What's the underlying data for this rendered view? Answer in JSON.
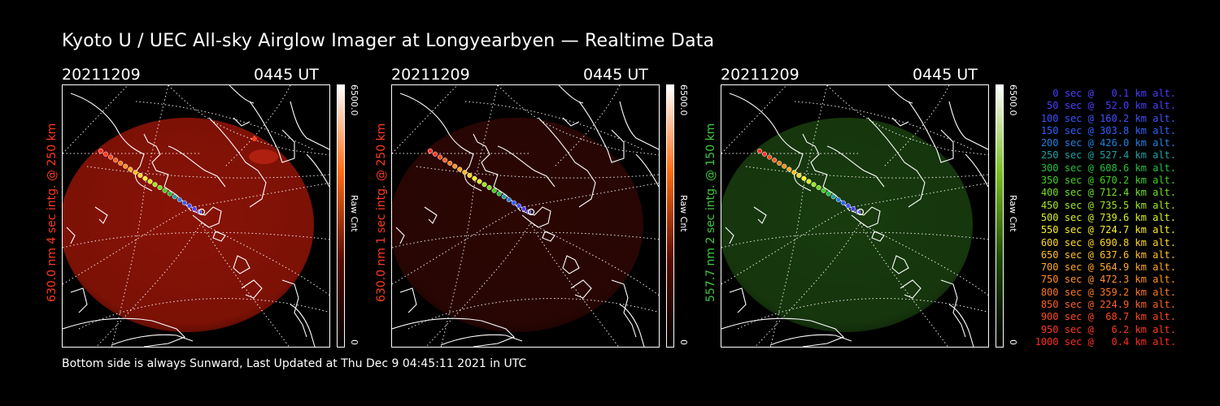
{
  "title": "Kyoto U / UEC All-sky Airglow Imager at Longyearbyen — Realtime Data",
  "panels": [
    {
      "date": "20211209",
      "time": "0445 UT",
      "ylabel": "630.0 nm 4 sec intg. @ 250 km",
      "ylabel_color": "#ff3a1e",
      "glow_color": "#b01808",
      "glow_opacity": 0.78,
      "cbar_max": "6500.0",
      "cbar_min": "0",
      "cbar_label": "Raw Cnt",
      "cbar_colors": [
        "#ffffff",
        "#ff6a10",
        "#5a0a00",
        "#000000"
      ]
    },
    {
      "date": "20211209",
      "time": "0445 UT",
      "ylabel": "630.0 nm 1 sec intg. @ 250 km",
      "ylabel_color": "#ff3a1e",
      "glow_color": "#3a0804",
      "glow_opacity": 0.75,
      "cbar_max": "6500.0",
      "cbar_min": "0",
      "cbar_label": "Raw Cnt",
      "cbar_colors": [
        "#ffffff",
        "#ff6a10",
        "#5a0a00",
        "#000000"
      ]
    },
    {
      "date": "20211209",
      "time": "0445 UT",
      "ylabel": "557.7 nm 2 sec intg. @ 150 km",
      "ylabel_color": "#3ec83e",
      "glow_color": "#1e4a12",
      "glow_opacity": 0.8,
      "cbar_max": "6500.0",
      "cbar_min": "0",
      "cbar_label": "Raw Cnt",
      "cbar_colors": [
        "#ffffff",
        "#7ac020",
        "#1e4a05",
        "#000000"
      ]
    }
  ],
  "footer": "Bottom side is always Sunward, Last Updated at Thu Dec  9 04:45:11 2021 in UTC",
  "legend": [
    {
      "text": "0 sec @   0.1 km alt.",
      "color": "#4a3cff"
    },
    {
      "text": "50 sec @  52.0 km alt.",
      "color": "#4a3cff"
    },
    {
      "text": "100 sec @ 160.2 km alt.",
      "color": "#4050ff"
    },
    {
      "text": "150 sec @ 303.8 km alt.",
      "color": "#3060ff"
    },
    {
      "text": "200 sec @ 426.0 km alt.",
      "color": "#2080e0"
    },
    {
      "text": "250 sec @ 527.4 km alt.",
      "color": "#20a0a0"
    },
    {
      "text": "300 sec @ 608.6 km alt.",
      "color": "#20c040"
    },
    {
      "text": "350 sec @ 670.2 km alt.",
      "color": "#40d020"
    },
    {
      "text": "400 sec @ 712.4 km alt.",
      "color": "#70e020"
    },
    {
      "text": "450 sec @ 735.5 km alt.",
      "color": "#a0e820"
    },
    {
      "text": "500 sec @ 739.6 km alt.",
      "color": "#d8f020"
    },
    {
      "text": "550 sec @ 724.7 km alt.",
      "color": "#f8f020"
    },
    {
      "text": "600 sec @ 690.8 km alt.",
      "color": "#ffd820"
    },
    {
      "text": "650 sec @ 637.6 km alt.",
      "color": "#ffc020"
    },
    {
      "text": "700 sec @ 564.9 km alt.",
      "color": "#ffa820"
    },
    {
      "text": "750 sec @ 472.3 km alt.",
      "color": "#ff9020"
    },
    {
      "text": "800 sec @ 359.2 km alt.",
      "color": "#ff7820"
    },
    {
      "text": "850 sec @ 224.9 km alt.",
      "color": "#ff6020"
    },
    {
      "text": "900 sec @  68.7 km alt.",
      "color": "#ff4820"
    },
    {
      "text": "950 sec @   6.2 km alt.",
      "color": "#ff3820"
    },
    {
      "text": "1000 sec @   0.4 km alt.",
      "color": "#ff2a20"
    }
  ]
}
